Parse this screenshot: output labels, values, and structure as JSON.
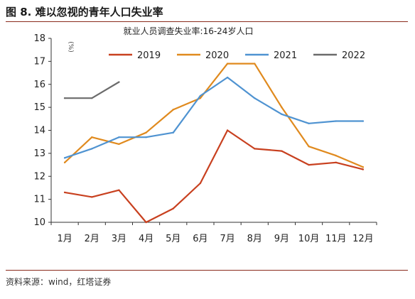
{
  "figure": {
    "title": "图 8. 难以忽视的青年人口失业率",
    "source": "资料来源：wind，红塔证券"
  },
  "chart_data": {
    "type": "line",
    "title": "就业人员调查失业率:16-24岁人口",
    "ylabel": "(%)",
    "xlabel": "",
    "ylim": [
      10,
      18
    ],
    "yticks": [
      10,
      11,
      12,
      13,
      14,
      15,
      16,
      17,
      18
    ],
    "categories": [
      "1月",
      "2月",
      "3月",
      "4月",
      "5月",
      "6月",
      "7月",
      "8月",
      "9月",
      "10月",
      "11月",
      "12月"
    ],
    "grid": false,
    "legend_position": "top",
    "series": [
      {
        "name": "2019",
        "color": "#c8401f",
        "values": [
          11.3,
          11.1,
          11.4,
          10.0,
          10.6,
          11.7,
          14.0,
          13.2,
          13.1,
          12.5,
          12.6,
          12.3
        ]
      },
      {
        "name": "2020",
        "color": "#e08a1e",
        "values": [
          12.6,
          13.7,
          13.4,
          13.9,
          14.9,
          15.4,
          16.9,
          16.9,
          15.0,
          13.3,
          12.9,
          12.4
        ]
      },
      {
        "name": "2021",
        "color": "#4f93d1",
        "values": [
          12.8,
          13.2,
          13.7,
          13.7,
          13.9,
          15.5,
          16.3,
          15.4,
          14.7,
          14.3,
          14.4,
          14.4
        ]
      },
      {
        "name": "2022",
        "color": "#6b6b6b",
        "values": [
          15.4,
          15.4,
          16.1,
          null,
          null,
          null,
          null,
          null,
          null,
          null,
          null,
          null
        ]
      }
    ]
  }
}
